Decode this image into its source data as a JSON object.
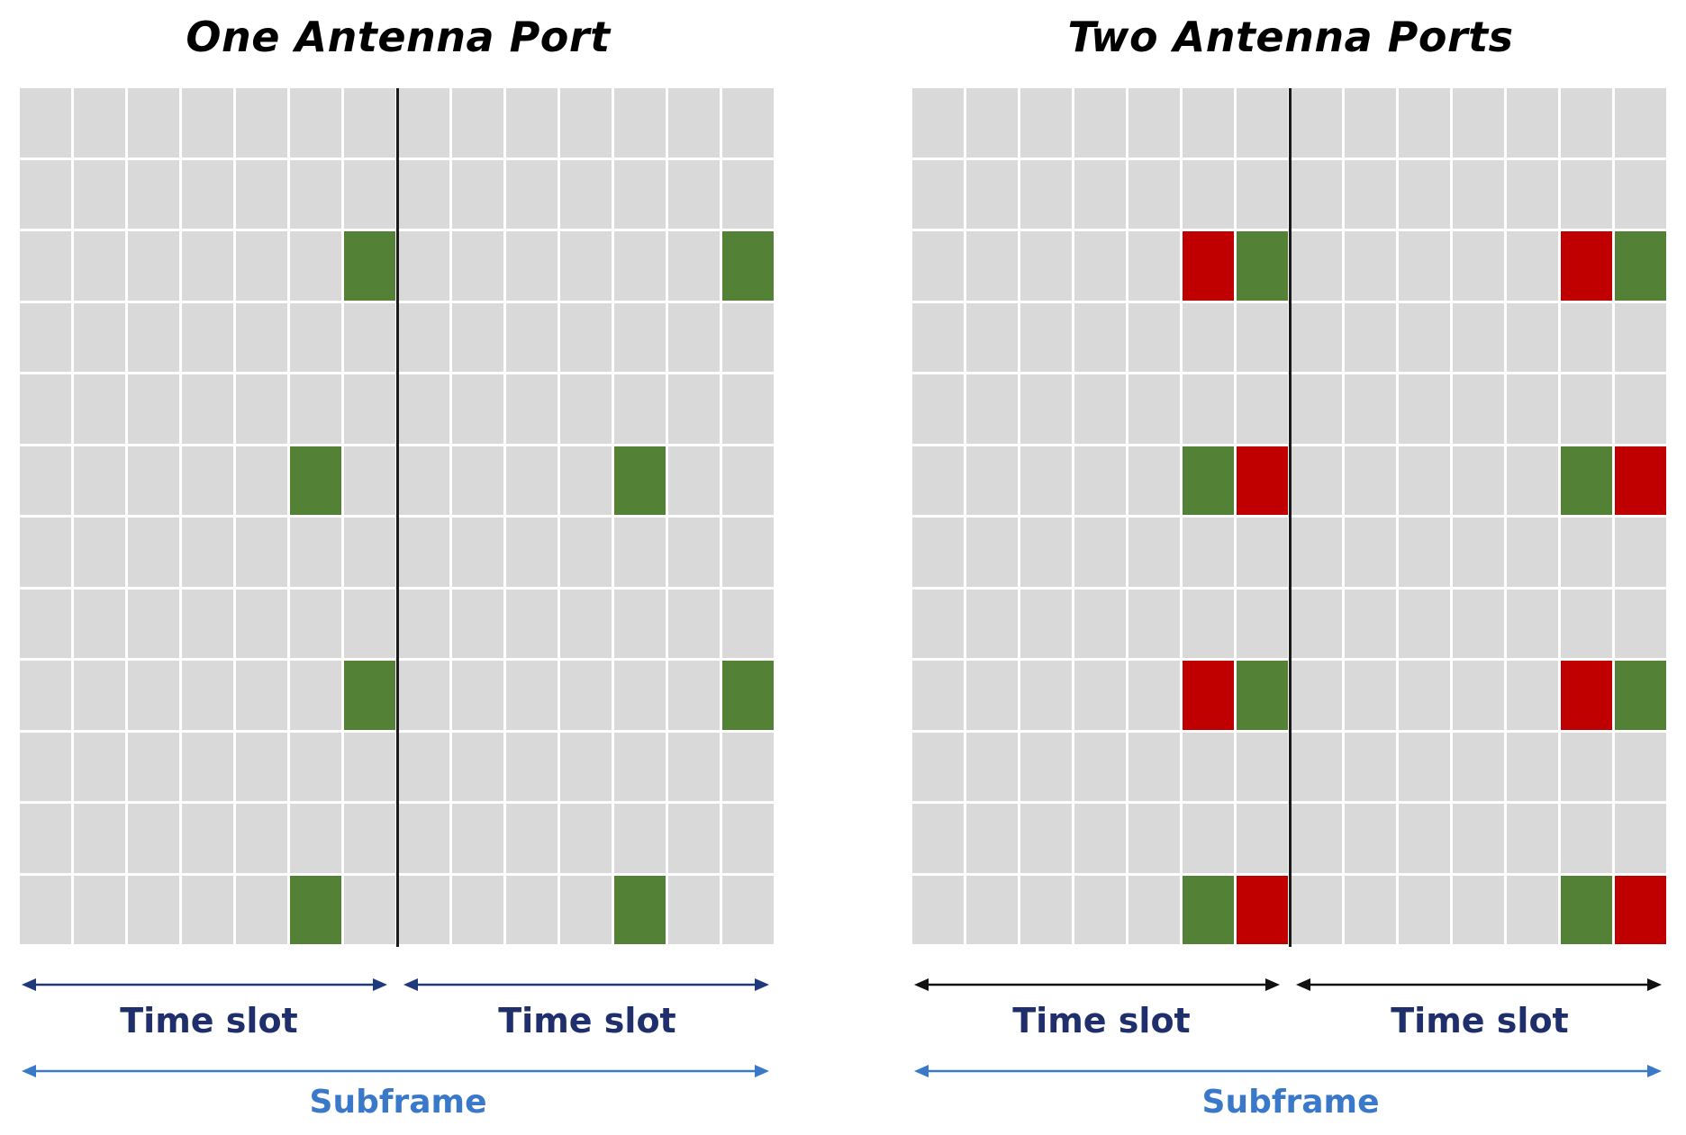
{
  "colors": {
    "empty_re": "#d9d9d9",
    "port0_ref": "#538135",
    "port1_ref": "#c00000",
    "grid_line": "#ffffff",
    "slot_divider": "#1a1a1a",
    "timeslot_arrow_left_panel": "#1f3a7a",
    "timeslot_arrow_right_panel": "#111111",
    "timeslot_text": "#1f2f6b",
    "subframe_arrow": "#3a78c9",
    "subframe_text": "#3a78c9"
  },
  "grid": {
    "rows": 12,
    "cols": 14,
    "symbols_per_slot": 7
  },
  "panels": [
    {
      "title": "One Antenna Port",
      "timeslot_labels": [
        "Time slot",
        "Time slot"
      ],
      "subframe_label": "Subframe",
      "arrow_style": "timeslot_arrow_left_panel",
      "reference_signals": [
        {
          "row": 2,
          "col": 6,
          "port": "port0_ref"
        },
        {
          "row": 2,
          "col": 13,
          "port": "port0_ref"
        },
        {
          "row": 5,
          "col": 5,
          "port": "port0_ref"
        },
        {
          "row": 5,
          "col": 11,
          "port": "port0_ref"
        },
        {
          "row": 8,
          "col": 6,
          "port": "port0_ref"
        },
        {
          "row": 8,
          "col": 13,
          "port": "port0_ref"
        },
        {
          "row": 11,
          "col": 5,
          "port": "port0_ref"
        },
        {
          "row": 11,
          "col": 11,
          "port": "port0_ref"
        }
      ]
    },
    {
      "title": "Two Antenna Ports",
      "timeslot_labels": [
        "Time slot",
        "Time slot"
      ],
      "subframe_label": "Subframe",
      "arrow_style": "timeslot_arrow_right_panel",
      "reference_signals": [
        {
          "row": 2,
          "col": 5,
          "port": "port1_ref"
        },
        {
          "row": 2,
          "col": 6,
          "port": "port0_ref"
        },
        {
          "row": 2,
          "col": 12,
          "port": "port1_ref"
        },
        {
          "row": 2,
          "col": 13,
          "port": "port0_ref"
        },
        {
          "row": 5,
          "col": 5,
          "port": "port0_ref"
        },
        {
          "row": 5,
          "col": 6,
          "port": "port1_ref"
        },
        {
          "row": 5,
          "col": 12,
          "port": "port0_ref"
        },
        {
          "row": 5,
          "col": 13,
          "port": "port1_ref"
        },
        {
          "row": 8,
          "col": 5,
          "port": "port1_ref"
        },
        {
          "row": 8,
          "col": 6,
          "port": "port0_ref"
        },
        {
          "row": 8,
          "col": 12,
          "port": "port1_ref"
        },
        {
          "row": 8,
          "col": 13,
          "port": "port0_ref"
        },
        {
          "row": 11,
          "col": 5,
          "port": "port0_ref"
        },
        {
          "row": 11,
          "col": 6,
          "port": "port1_ref"
        },
        {
          "row": 11,
          "col": 12,
          "port": "port0_ref"
        },
        {
          "row": 11,
          "col": 13,
          "port": "port1_ref"
        }
      ]
    }
  ]
}
